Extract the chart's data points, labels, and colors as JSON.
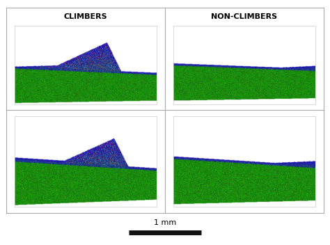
{
  "title_left": "CLIMBERS",
  "title_right": "NON-CLIMBERS",
  "scale_bar_label": "1 mm",
  "background_color": "#ffffff",
  "border_color": "#aaaaaa",
  "title_fontsize": 8,
  "scale_fontsize": 8,
  "figure_width": 4.74,
  "figure_height": 3.52,
  "scale_bar_color": "#111111",
  "divider_color": "#aaaaaa"
}
